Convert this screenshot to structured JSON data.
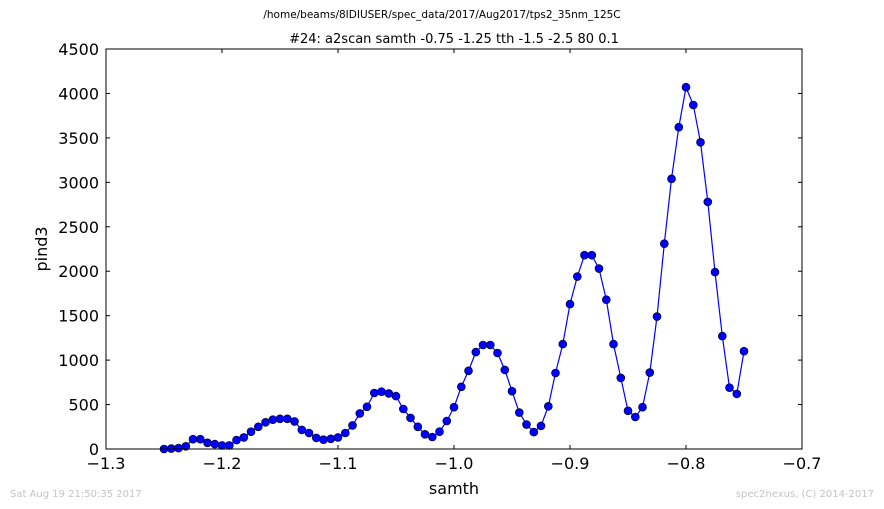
{
  "suptitle": "/home/beams/8IDIUSER/spec_data/2017/Aug2017/tps2_35nm_125C",
  "footer": {
    "timestamp": "Sat Aug 19 21:50:35 2017",
    "credit": "spec2nexus, (C) 2014-2017"
  },
  "colors": {
    "series": "#0000ff",
    "axes": "#000000",
    "footer": "#c4c4c4"
  },
  "chart_data": {
    "type": "line",
    "title": "#24: a2scan  samth -0.75 -1.25  tth -1.5 -2.5  80 0.1",
    "xlabel": "samth",
    "ylabel": "pind3",
    "xlim": [
      -1.3,
      -0.7
    ],
    "ylim": [
      0,
      4500
    ],
    "xticks": [
      -1.3,
      -1.2,
      -1.1,
      -1.0,
      -0.9,
      -0.8,
      -0.7
    ],
    "xtick_labels": [
      "−1.3",
      "−1.2",
      "−1.1",
      "−1.0",
      "−0.9",
      "−0.8",
      "−0.7"
    ],
    "yticks": [
      0,
      500,
      1000,
      1500,
      2000,
      2500,
      3000,
      3500,
      4000,
      4500
    ],
    "ytick_labels": [
      "0",
      "500",
      "1000",
      "1500",
      "2000",
      "2500",
      "3000",
      "3500",
      "4000",
      "4500"
    ],
    "grid": false,
    "marker": "circle",
    "series": [
      {
        "x": [
          -1.25,
          -1.2437,
          -1.2375,
          -1.2312,
          -1.225,
          -1.2187,
          -1.2125,
          -1.2062,
          -1.2,
          -1.1937,
          -1.1875,
          -1.1812,
          -1.175,
          -1.1687,
          -1.1625,
          -1.1562,
          -1.15,
          -1.1437,
          -1.1375,
          -1.1312,
          -1.125,
          -1.1187,
          -1.1125,
          -1.1062,
          -1.1,
          -1.0937,
          -1.0875,
          -1.0812,
          -1.075,
          -1.0687,
          -1.0625,
          -1.0562,
          -1.05,
          -1.0437,
          -1.0375,
          -1.0312,
          -1.025,
          -1.0187,
          -1.0125,
          -1.0062,
          -1.0,
          -0.9937,
          -0.9875,
          -0.9812,
          -0.975,
          -0.9687,
          -0.9625,
          -0.9562,
          -0.95,
          -0.9437,
          -0.9375,
          -0.9312,
          -0.925,
          -0.9187,
          -0.9125,
          -0.9062,
          -0.9,
          -0.8937,
          -0.8875,
          -0.8812,
          -0.875,
          -0.8687,
          -0.8625,
          -0.8562,
          -0.85,
          -0.8437,
          -0.8375,
          -0.8312,
          -0.825,
          -0.8187,
          -0.8125,
          -0.8062,
          -0.8,
          -0.7937,
          -0.7875,
          -0.7812,
          -0.775,
          -0.7687,
          -0.7625,
          -0.7562,
          -0.75
        ],
        "y": [
          0,
          5,
          10,
          30,
          110,
          110,
          70,
          55,
          40,
          40,
          100,
          130,
          195,
          250,
          300,
          330,
          340,
          340,
          310,
          215,
          180,
          125,
          105,
          115,
          130,
          180,
          265,
          400,
          475,
          630,
          645,
          625,
          595,
          450,
          350,
          250,
          165,
          135,
          195,
          315,
          470,
          700,
          880,
          1090,
          1170,
          1170,
          1080,
          890,
          650,
          410,
          275,
          190,
          260,
          480,
          855,
          1180,
          1630,
          1940,
          2180,
          2180,
          2030,
          1680,
          1180,
          800,
          430,
          360,
          470,
          860,
          1490,
          2310,
          3040,
          3620,
          4070,
          3870,
          3450,
          2780,
          1990,
          1270,
          690,
          620,
          1100
        ]
      }
    ]
  }
}
